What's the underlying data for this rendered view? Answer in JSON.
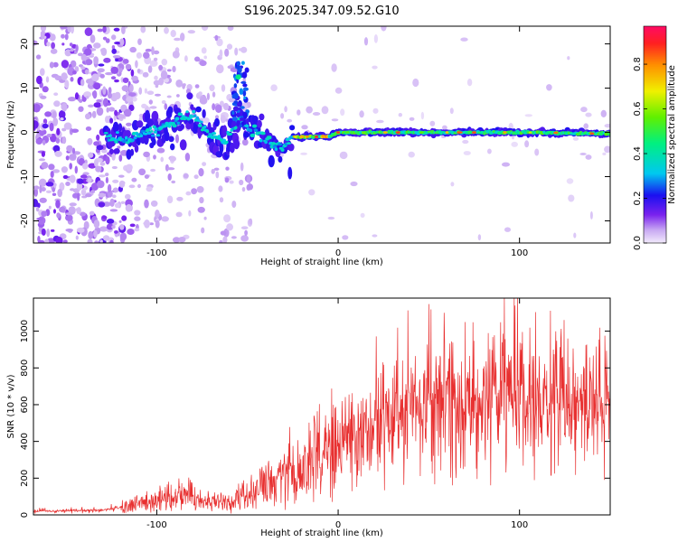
{
  "title": "S196.2025.347.09.52.G10",
  "chart_data": [
    {
      "type": "heatmap",
      "xlabel": "Height of straight line (km)",
      "ylabel": "Frequency (Hz)",
      "xlim": [
        -168,
        150
      ],
      "ylim": [
        -25,
        24
      ],
      "xticks": [
        -100,
        0,
        100
      ],
      "yticks": [
        -20,
        -10,
        0,
        10,
        20
      ],
      "colorbar": {
        "label": "Normalized spectral amplitude",
        "range": [
          0,
          0.97
        ],
        "ticks": [
          0.0,
          0.2,
          0.4,
          0.6,
          0.8
        ]
      },
      "ridge": [
        {
          "x": -128,
          "f": -1.0
        },
        {
          "x": -115,
          "f": -1.5
        },
        {
          "x": -100,
          "f": 0.5
        },
        {
          "x": -88,
          "f": 2.5
        },
        {
          "x": -80,
          "f": 4.0
        },
        {
          "x": -72,
          "f": 0.0
        },
        {
          "x": -62,
          "f": -2.0
        },
        {
          "x": -55,
          "f": 3.0
        },
        {
          "x": -48,
          "f": 0.5
        },
        {
          "x": -40,
          "f": -1.5
        },
        {
          "x": -32,
          "f": -3.5
        },
        {
          "x": -25,
          "f": -1.0
        },
        {
          "x": -15,
          "f": -1.0
        },
        {
          "x": -5,
          "f": -1.0
        },
        {
          "x": 0,
          "f": 0.0
        },
        {
          "x": 50,
          "f": 0.0
        },
        {
          "x": 100,
          "f": 0.0
        },
        {
          "x": 150,
          "f": -0.3
        }
      ],
      "peak": {
        "x": -55,
        "f": 12.5
      }
    },
    {
      "type": "line",
      "xlabel": "Height of straight line (km)",
      "ylabel": "SNR (10 * v/v)",
      "xlim": [
        -168,
        150
      ],
      "ylim": [
        0,
        1180
      ],
      "xticks": [
        -100,
        0,
        100
      ],
      "yticks": [
        0,
        200,
        400,
        600,
        800,
        1000
      ],
      "color": "#e83030",
      "envelope": [
        {
          "x": -168,
          "v": 20
        },
        {
          "x": -130,
          "v": 25
        },
        {
          "x": -115,
          "v": 50
        },
        {
          "x": -100,
          "v": 80
        },
        {
          "x": -85,
          "v": 120
        },
        {
          "x": -75,
          "v": 70
        },
        {
          "x": -60,
          "v": 70
        },
        {
          "x": -50,
          "v": 110
        },
        {
          "x": -40,
          "v": 160
        },
        {
          "x": -30,
          "v": 220
        },
        {
          "x": -20,
          "v": 270
        },
        {
          "x": -10,
          "v": 320
        },
        {
          "x": 0,
          "v": 370
        },
        {
          "x": 10,
          "v": 450
        },
        {
          "x": 20,
          "v": 520
        },
        {
          "x": 30,
          "v": 570
        },
        {
          "x": 50,
          "v": 610
        },
        {
          "x": 70,
          "v": 630
        },
        {
          "x": 90,
          "v": 640
        },
        {
          "x": 110,
          "v": 640
        },
        {
          "x": 130,
          "v": 630
        },
        {
          "x": 150,
          "v": 620
        }
      ],
      "max_value": 1180
    }
  ]
}
